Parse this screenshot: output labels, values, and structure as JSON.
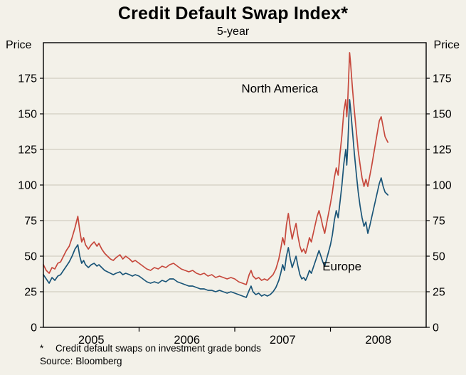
{
  "header": {
    "title": "Credit Default Swap Index*",
    "subtitle": "5-year"
  },
  "axes": {
    "left_unit": "Price",
    "right_unit": "Price"
  },
  "footnotes": {
    "note_marker": "*",
    "note_text": "Credit default swaps on investment grade bonds",
    "source": "Source: Bloomberg"
  },
  "chart_data": {
    "type": "line",
    "title": "Credit Default Swap Index*",
    "subtitle": "5-year",
    "ylabel": "Price",
    "ylim": [
      0,
      200
    ],
    "yticks": [
      0,
      25,
      50,
      75,
      100,
      125,
      150,
      175
    ],
    "xlim": [
      2005.0,
      2009.0
    ],
    "xtick_years": [
      2006,
      2007,
      2008
    ],
    "xlabels": [
      {
        "text": "2005",
        "x": 2005.5
      },
      {
        "text": "2006",
        "x": 2006.5
      },
      {
        "text": "2007",
        "x": 2007.5
      },
      {
        "text": "2008",
        "x": 2008.5
      }
    ],
    "grid": true,
    "colors": {
      "background": "#f3f1e9",
      "grid": "#c9c5b8",
      "axis": "#000000",
      "north_america": "#c6483c",
      "europe": "#1a5578"
    },
    "series": [
      {
        "name": "North America",
        "color": "#c6483c",
        "points": [
          [
            2005.0,
            44
          ],
          [
            2005.03,
            40
          ],
          [
            2005.06,
            38
          ],
          [
            2005.09,
            42
          ],
          [
            2005.12,
            41
          ],
          [
            2005.15,
            45
          ],
          [
            2005.18,
            46
          ],
          [
            2005.21,
            50
          ],
          [
            2005.24,
            54
          ],
          [
            2005.27,
            57
          ],
          [
            2005.3,
            63
          ],
          [
            2005.33,
            70
          ],
          [
            2005.36,
            78
          ],
          [
            2005.38,
            68
          ],
          [
            2005.4,
            60
          ],
          [
            2005.42,
            63
          ],
          [
            2005.44,
            58
          ],
          [
            2005.47,
            55
          ],
          [
            2005.5,
            58
          ],
          [
            2005.53,
            60
          ],
          [
            2005.56,
            57
          ],
          [
            2005.58,
            59
          ],
          [
            2005.61,
            55
          ],
          [
            2005.64,
            52
          ],
          [
            2005.67,
            50
          ],
          [
            2005.7,
            48
          ],
          [
            2005.73,
            47
          ],
          [
            2005.76,
            49
          ],
          [
            2005.8,
            51
          ],
          [
            2005.83,
            48
          ],
          [
            2005.86,
            50
          ],
          [
            2005.9,
            48
          ],
          [
            2005.93,
            46
          ],
          [
            2005.96,
            47
          ],
          [
            2006.0,
            45
          ],
          [
            2006.04,
            43
          ],
          [
            2006.08,
            41
          ],
          [
            2006.12,
            40
          ],
          [
            2006.16,
            42
          ],
          [
            2006.2,
            41
          ],
          [
            2006.24,
            43
          ],
          [
            2006.28,
            42
          ],
          [
            2006.32,
            44
          ],
          [
            2006.36,
            45
          ],
          [
            2006.4,
            43
          ],
          [
            2006.44,
            41
          ],
          [
            2006.48,
            40
          ],
          [
            2006.52,
            39
          ],
          [
            2006.56,
            40
          ],
          [
            2006.6,
            38
          ],
          [
            2006.64,
            37
          ],
          [
            2006.68,
            38
          ],
          [
            2006.72,
            36
          ],
          [
            2006.76,
            37
          ],
          [
            2006.8,
            35
          ],
          [
            2006.84,
            36
          ],
          [
            2006.88,
            35
          ],
          [
            2006.92,
            34
          ],
          [
            2006.96,
            35
          ],
          [
            2007.0,
            34
          ],
          [
            2007.04,
            32
          ],
          [
            2007.08,
            31
          ],
          [
            2007.12,
            30
          ],
          [
            2007.15,
            37
          ],
          [
            2007.17,
            40
          ],
          [
            2007.19,
            36
          ],
          [
            2007.22,
            34
          ],
          [
            2007.25,
            35
          ],
          [
            2007.28,
            33
          ],
          [
            2007.31,
            34
          ],
          [
            2007.34,
            33
          ],
          [
            2007.37,
            35
          ],
          [
            2007.4,
            37
          ],
          [
            2007.43,
            41
          ],
          [
            2007.46,
            48
          ],
          [
            2007.48,
            55
          ],
          [
            2007.5,
            63
          ],
          [
            2007.52,
            58
          ],
          [
            2007.54,
            72
          ],
          [
            2007.56,
            80
          ],
          [
            2007.58,
            70
          ],
          [
            2007.6,
            62
          ],
          [
            2007.62,
            68
          ],
          [
            2007.64,
            73
          ],
          [
            2007.66,
            64
          ],
          [
            2007.68,
            57
          ],
          [
            2007.7,
            53
          ],
          [
            2007.72,
            55
          ],
          [
            2007.74,
            52
          ],
          [
            2007.76,
            57
          ],
          [
            2007.78,
            63
          ],
          [
            2007.8,
            60
          ],
          [
            2007.82,
            66
          ],
          [
            2007.84,
            72
          ],
          [
            2007.86,
            78
          ],
          [
            2007.88,
            82
          ],
          [
            2007.9,
            77
          ],
          [
            2007.92,
            71
          ],
          [
            2007.94,
            66
          ],
          [
            2007.96,
            73
          ],
          [
            2007.98,
            80
          ],
          [
            2008.0,
            87
          ],
          [
            2008.02,
            95
          ],
          [
            2008.04,
            105
          ],
          [
            2008.06,
            112
          ],
          [
            2008.08,
            107
          ],
          [
            2008.1,
            122
          ],
          [
            2008.12,
            135
          ],
          [
            2008.14,
            152
          ],
          [
            2008.16,
            160
          ],
          [
            2008.17,
            148
          ],
          [
            2008.18,
            158
          ],
          [
            2008.2,
            193
          ],
          [
            2008.21,
            186
          ],
          [
            2008.23,
            168
          ],
          [
            2008.25,
            152
          ],
          [
            2008.27,
            138
          ],
          [
            2008.29,
            124
          ],
          [
            2008.31,
            114
          ],
          [
            2008.33,
            105
          ],
          [
            2008.35,
            99
          ],
          [
            2008.37,
            104
          ],
          [
            2008.39,
            99
          ],
          [
            2008.41,
            106
          ],
          [
            2008.43,
            113
          ],
          [
            2008.45,
            121
          ],
          [
            2008.47,
            129
          ],
          [
            2008.49,
            137
          ],
          [
            2008.51,
            145
          ],
          [
            2008.53,
            148
          ],
          [
            2008.55,
            141
          ],
          [
            2008.57,
            134
          ],
          [
            2008.6,
            130
          ]
        ]
      },
      {
        "name": "Europe",
        "color": "#1a5578",
        "points": [
          [
            2005.0,
            37
          ],
          [
            2005.03,
            34
          ],
          [
            2005.06,
            31
          ],
          [
            2005.09,
            35
          ],
          [
            2005.12,
            33
          ],
          [
            2005.15,
            36
          ],
          [
            2005.18,
            37
          ],
          [
            2005.21,
            40
          ],
          [
            2005.24,
            43
          ],
          [
            2005.27,
            46
          ],
          [
            2005.3,
            50
          ],
          [
            2005.33,
            55
          ],
          [
            2005.36,
            58
          ],
          [
            2005.38,
            50
          ],
          [
            2005.4,
            45
          ],
          [
            2005.42,
            47
          ],
          [
            2005.44,
            44
          ],
          [
            2005.47,
            42
          ],
          [
            2005.5,
            44
          ],
          [
            2005.53,
            45
          ],
          [
            2005.56,
            43
          ],
          [
            2005.58,
            44
          ],
          [
            2005.61,
            42
          ],
          [
            2005.64,
            40
          ],
          [
            2005.67,
            39
          ],
          [
            2005.7,
            38
          ],
          [
            2005.73,
            37
          ],
          [
            2005.76,
            38
          ],
          [
            2005.8,
            39
          ],
          [
            2005.83,
            37
          ],
          [
            2005.86,
            38
          ],
          [
            2005.9,
            37
          ],
          [
            2005.93,
            36
          ],
          [
            2005.96,
            37
          ],
          [
            2006.0,
            36
          ],
          [
            2006.04,
            34
          ],
          [
            2006.08,
            32
          ],
          [
            2006.12,
            31
          ],
          [
            2006.16,
            32
          ],
          [
            2006.2,
            31
          ],
          [
            2006.24,
            33
          ],
          [
            2006.28,
            32
          ],
          [
            2006.32,
            34
          ],
          [
            2006.36,
            34
          ],
          [
            2006.4,
            32
          ],
          [
            2006.44,
            31
          ],
          [
            2006.48,
            30
          ],
          [
            2006.52,
            29
          ],
          [
            2006.56,
            29
          ],
          [
            2006.6,
            28
          ],
          [
            2006.64,
            27
          ],
          [
            2006.68,
            27
          ],
          [
            2006.72,
            26
          ],
          [
            2006.76,
            26
          ],
          [
            2006.8,
            25
          ],
          [
            2006.84,
            26
          ],
          [
            2006.88,
            25
          ],
          [
            2006.92,
            24
          ],
          [
            2006.96,
            25
          ],
          [
            2007.0,
            24
          ],
          [
            2007.04,
            23
          ],
          [
            2007.08,
            22
          ],
          [
            2007.12,
            21
          ],
          [
            2007.15,
            26
          ],
          [
            2007.17,
            29
          ],
          [
            2007.19,
            25
          ],
          [
            2007.22,
            23
          ],
          [
            2007.25,
            24
          ],
          [
            2007.28,
            22
          ],
          [
            2007.31,
            23
          ],
          [
            2007.34,
            22
          ],
          [
            2007.37,
            23
          ],
          [
            2007.4,
            25
          ],
          [
            2007.43,
            28
          ],
          [
            2007.46,
            33
          ],
          [
            2007.48,
            38
          ],
          [
            2007.5,
            44
          ],
          [
            2007.52,
            40
          ],
          [
            2007.54,
            50
          ],
          [
            2007.56,
            56
          ],
          [
            2007.58,
            48
          ],
          [
            2007.6,
            42
          ],
          [
            2007.62,
            46
          ],
          [
            2007.64,
            50
          ],
          [
            2007.66,
            43
          ],
          [
            2007.68,
            37
          ],
          [
            2007.7,
            34
          ],
          [
            2007.72,
            35
          ],
          [
            2007.74,
            33
          ],
          [
            2007.76,
            36
          ],
          [
            2007.78,
            40
          ],
          [
            2007.8,
            38
          ],
          [
            2007.82,
            42
          ],
          [
            2007.84,
            46
          ],
          [
            2007.86,
            50
          ],
          [
            2007.88,
            54
          ],
          [
            2007.9,
            50
          ],
          [
            2007.92,
            46
          ],
          [
            2007.94,
            43
          ],
          [
            2007.96,
            48
          ],
          [
            2007.98,
            53
          ],
          [
            2008.0,
            58
          ],
          [
            2008.02,
            65
          ],
          [
            2008.04,
            75
          ],
          [
            2008.06,
            82
          ],
          [
            2008.08,
            77
          ],
          [
            2008.1,
            88
          ],
          [
            2008.12,
            100
          ],
          [
            2008.14,
            115
          ],
          [
            2008.16,
            125
          ],
          [
            2008.17,
            114
          ],
          [
            2008.18,
            126
          ],
          [
            2008.2,
            160
          ],
          [
            2008.21,
            154
          ],
          [
            2008.23,
            138
          ],
          [
            2008.25,
            122
          ],
          [
            2008.27,
            108
          ],
          [
            2008.29,
            95
          ],
          [
            2008.31,
            85
          ],
          [
            2008.33,
            77
          ],
          [
            2008.35,
            71
          ],
          [
            2008.37,
            74
          ],
          [
            2008.39,
            66
          ],
          [
            2008.41,
            71
          ],
          [
            2008.43,
            77
          ],
          [
            2008.45,
            83
          ],
          [
            2008.47,
            89
          ],
          [
            2008.49,
            95
          ],
          [
            2008.51,
            101
          ],
          [
            2008.53,
            105
          ],
          [
            2008.55,
            99
          ],
          [
            2008.57,
            95
          ],
          [
            2008.6,
            93
          ]
        ]
      }
    ],
    "annotations": [
      {
        "text": "North America",
        "x": 2007.47,
        "y": 165,
        "color": "#c6483c",
        "anchor": "middle"
      },
      {
        "text": "Europe",
        "x": 2008.12,
        "y": 40,
        "color": "#1a5578",
        "anchor": "middle"
      }
    ],
    "legend_position": "inline-annotations"
  }
}
